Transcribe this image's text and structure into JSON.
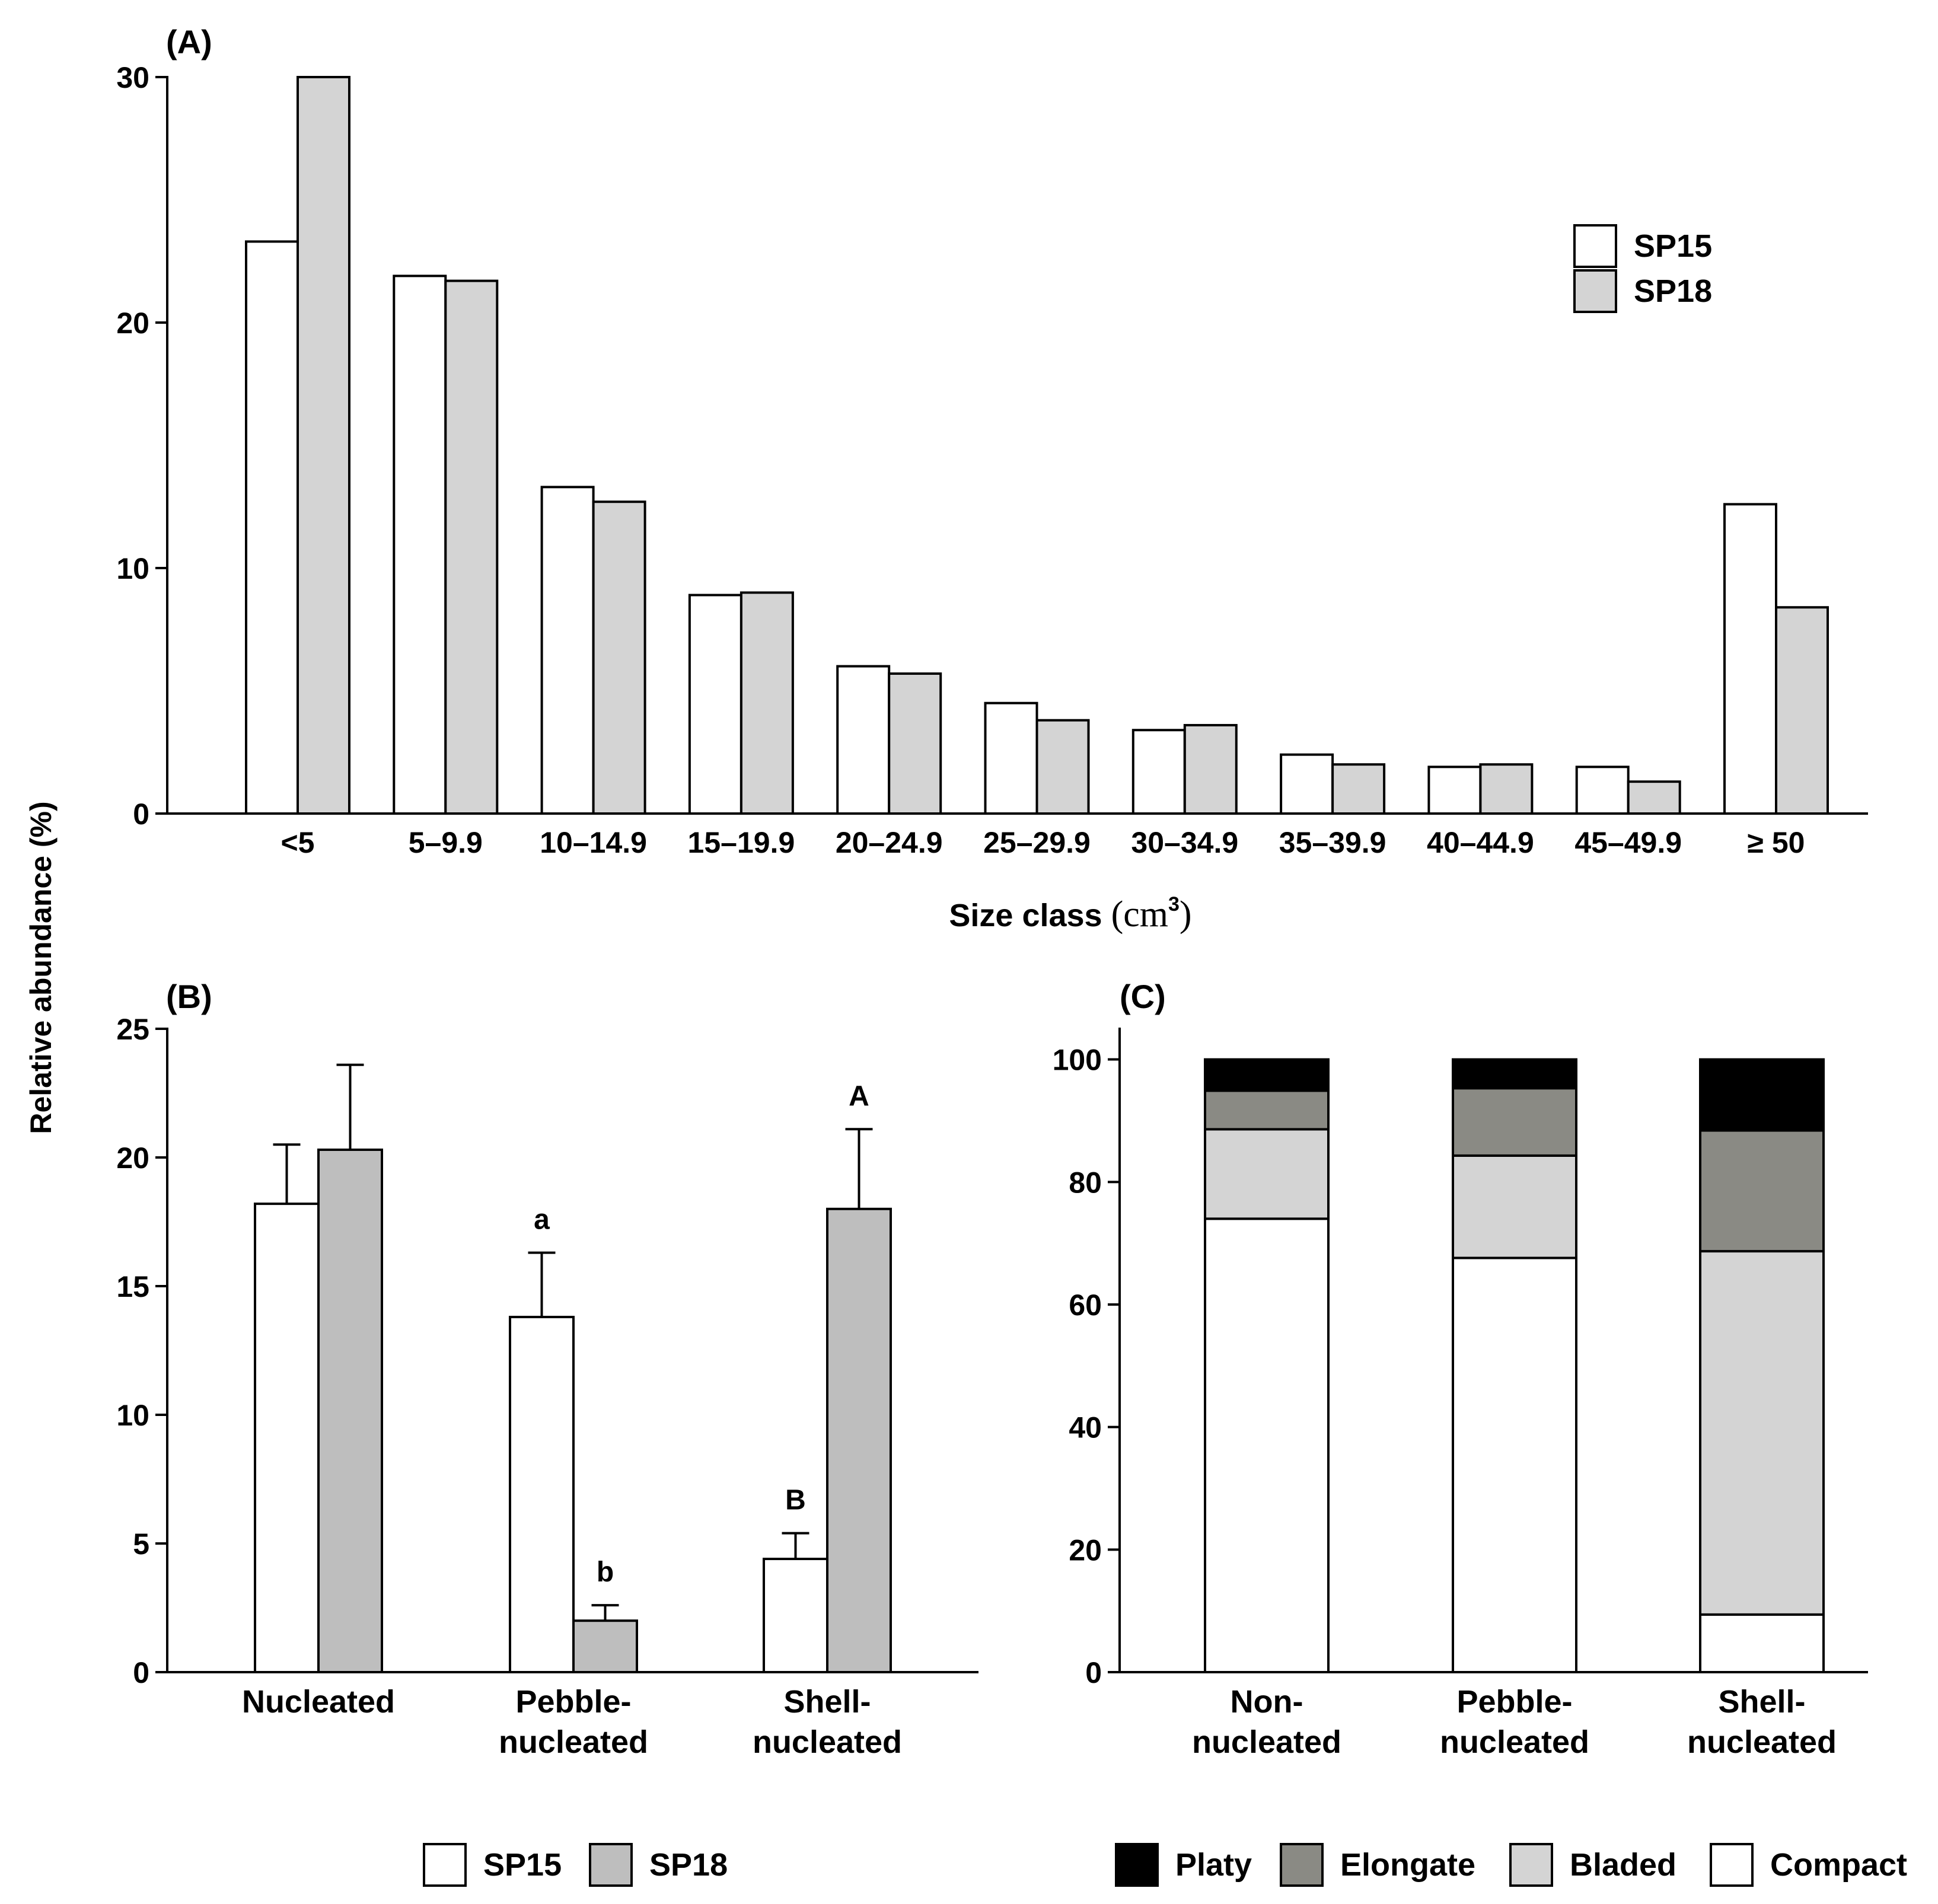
{
  "y_axis_label": "Relative abundance (%)",
  "chart_data": [
    {
      "panel": "(A)",
      "type": "bar",
      "categories": [
        "<5",
        "5–9.9",
        "10–14.9",
        "15–19.9",
        "20–24.9",
        "25–29.9",
        "30–34.9",
        "35–39.9",
        "40–44.9",
        "45–49.9",
        "≥ 50"
      ],
      "series": [
        {
          "name": "SP15",
          "color": "#ffffff",
          "values": [
            23.3,
            21.9,
            13.3,
            8.9,
            6.0,
            4.5,
            3.4,
            2.4,
            1.9,
            1.9,
            12.6
          ]
        },
        {
          "name": "SP18",
          "color": "#d4d4d4",
          "values": [
            30.0,
            21.7,
            12.7,
            9.0,
            5.7,
            3.8,
            3.6,
            2.0,
            2.0,
            1.3,
            8.4
          ]
        }
      ],
      "ylim": [
        0,
        30
      ],
      "yticks": [
        "0",
        "10",
        "20",
        "30"
      ],
      "xlabel": "Size class",
      "xlabel_unit": "(cm",
      "xlabel_unit_sup": "3",
      "xlabel_unit_close": ")",
      "ylabel": "Relative abundance (%)",
      "legend": [
        "SP15",
        "SP18"
      ],
      "legend_position": "top-right"
    },
    {
      "panel": "(B)",
      "type": "bar",
      "categories": [
        "Nucleated",
        "Pebble-nucleated",
        "Shell-nucleated"
      ],
      "category_lines": [
        [
          "Nucleated"
        ],
        [
          "Pebble-",
          "nucleated"
        ],
        [
          "Shell-",
          "nucleated"
        ]
      ],
      "series": [
        {
          "name": "SP15",
          "color": "#ffffff",
          "values": [
            18.2,
            13.8,
            4.4
          ],
          "errors": [
            2.3,
            2.5,
            1.0
          ],
          "labels": [
            "",
            "a",
            "B"
          ]
        },
        {
          "name": "SP18",
          "color": "#bebebe",
          "values": [
            20.3,
            2.0,
            18.0
          ],
          "errors": [
            3.3,
            0.6,
            3.1
          ],
          "labels": [
            "",
            "b",
            "A"
          ]
        }
      ],
      "ylim": [
        0,
        25
      ],
      "yticks": [
        "0",
        "5",
        "10",
        "15",
        "20",
        "25"
      ],
      "legend": [
        "SP15",
        "SP18"
      ],
      "legend_position": "bottom"
    },
    {
      "panel": "(C)",
      "type": "bar",
      "stacked": true,
      "categories": [
        "Non-nucleated",
        "Pebble-nucleated",
        "Shell-nucleated"
      ],
      "category_lines": [
        [
          "Non-",
          "nucleated"
        ],
        [
          "Pebble-",
          "nucleated"
        ],
        [
          "Shell-",
          "nucleated"
        ]
      ],
      "series": [
        {
          "name": "Compact",
          "color": "#ffffff",
          "values": [
            74.0,
            67.6,
            9.4
          ]
        },
        {
          "name": "Bladed",
          "color": "#d4d4d4",
          "values": [
            14.6,
            16.7,
            59.3
          ]
        },
        {
          "name": "Elongate",
          "color": "#8a8a84",
          "values": [
            6.3,
            11.0,
            19.7
          ]
        },
        {
          "name": "Platy",
          "color": "#000000",
          "values": [
            5.1,
            4.7,
            11.6
          ]
        }
      ],
      "ylim": [
        0,
        105
      ],
      "yticks": [
        "0",
        "20",
        "40",
        "60",
        "80",
        "100"
      ],
      "legend": [
        "Platy",
        "Elongate",
        "Bladed",
        "Compact"
      ],
      "legend_position": "bottom"
    }
  ]
}
